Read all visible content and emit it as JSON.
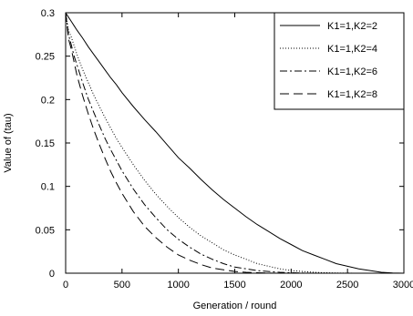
{
  "chart_data": {
    "type": "line",
    "title": "",
    "xlabel": "Generation / round",
    "ylabel": "Value of (tau)",
    "xlim": [
      0,
      3000
    ],
    "ylim": [
      0,
      0.3
    ],
    "xticks": [
      0,
      500,
      1000,
      1500,
      2000,
      2500,
      3000
    ],
    "xtick_labels": [
      "0",
      "500",
      "1000",
      "1500",
      "2000",
      "2500",
      "3000"
    ],
    "yticks": [
      0,
      0.05,
      0.1,
      0.15,
      0.2,
      0.25,
      0.3
    ],
    "ytick_labels": [
      "0",
      "0.05",
      "0.1",
      "0.15",
      "0.2",
      "0.25",
      "0.3"
    ],
    "grid": false,
    "legend_position": "top-right",
    "x": [
      0,
      25,
      50,
      75,
      100,
      150,
      200,
      250,
      300,
      350,
      400,
      450,
      500,
      600,
      700,
      800,
      900,
      1000,
      1100,
      1200,
      1300,
      1400,
      1500,
      1600,
      1700,
      1800,
      1900,
      2000,
      2100,
      2200,
      2300,
      2400,
      2500,
      2600,
      2700,
      2800,
      2900,
      3000
    ],
    "series": [
      {
        "name": "K1=1,K2=2",
        "dash": "solid",
        "values": [
          0.3,
          0.295,
          0.29,
          0.285,
          0.28,
          0.271,
          0.261,
          0.252,
          0.243,
          0.234,
          0.225,
          0.217,
          0.208,
          0.192,
          0.177,
          0.163,
          0.148,
          0.133,
          0.121,
          0.108,
          0.096,
          0.085,
          0.075,
          0.065,
          0.056,
          0.048,
          0.04,
          0.033,
          0.026,
          0.021,
          0.016,
          0.011,
          0.008,
          0.005,
          0.003,
          0.001,
          0.0003,
          0.0
        ]
      },
      {
        "name": "K1=1,K2=4",
        "dash": "dotted",
        "values": [
          0.3,
          0.28,
          0.272,
          0.262,
          0.252,
          0.235,
          0.22,
          0.205,
          0.192,
          0.179,
          0.167,
          0.155,
          0.145,
          0.125,
          0.107,
          0.091,
          0.077,
          0.064,
          0.053,
          0.043,
          0.035,
          0.027,
          0.021,
          0.016,
          0.011,
          0.008,
          0.005,
          0.003,
          0.002,
          0.001,
          0.0005,
          0.0002,
          0.0001,
          0.0,
          0.0,
          0.0,
          0.0,
          0.0
        ]
      },
      {
        "name": "K1=1,K2=6",
        "dash": "dashdot",
        "values": [
          0.3,
          0.275,
          0.263,
          0.25,
          0.24,
          0.22,
          0.201,
          0.185,
          0.17,
          0.155,
          0.142,
          0.13,
          0.118,
          0.097,
          0.079,
          0.064,
          0.05,
          0.039,
          0.03,
          0.022,
          0.016,
          0.011,
          0.007,
          0.005,
          0.003,
          0.002,
          0.001,
          0.0005,
          0.0002,
          0.0,
          0.0,
          0.0,
          0.0,
          0.0,
          0.0,
          0.0,
          0.0,
          0.0
        ]
      },
      {
        "name": "K1=1,K2=8",
        "dash": "dashed",
        "values": [
          0.3,
          0.27,
          0.258,
          0.243,
          0.228,
          0.205,
          0.184,
          0.165,
          0.148,
          0.132,
          0.117,
          0.104,
          0.092,
          0.071,
          0.054,
          0.041,
          0.03,
          0.021,
          0.015,
          0.01,
          0.006,
          0.004,
          0.002,
          0.001,
          0.0005,
          0.0002,
          0.0,
          0.0,
          0.0,
          0.0,
          0.0,
          0.0,
          0.0,
          0.0,
          0.0,
          0.0,
          0.0,
          0.0
        ]
      }
    ]
  }
}
